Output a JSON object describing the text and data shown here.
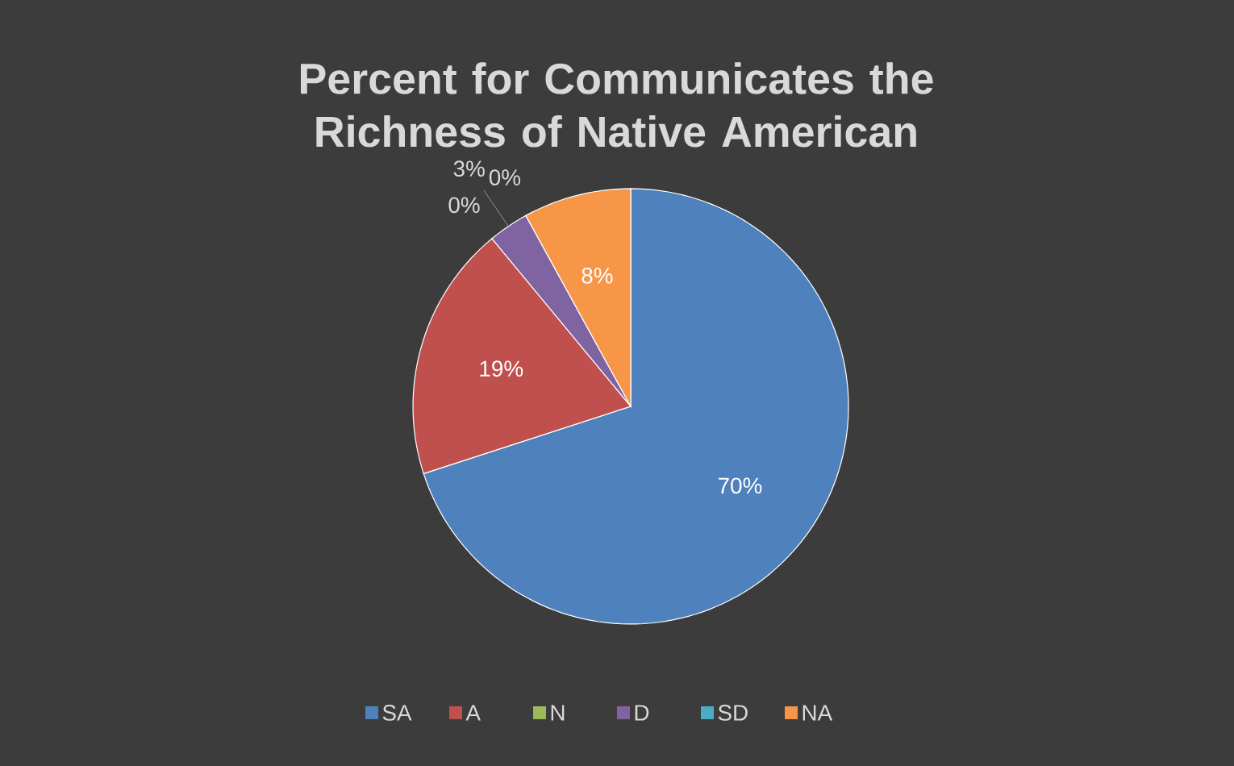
{
  "chart_data": {
    "type": "pie",
    "title": "Percent for Communicates the Richness of Native American",
    "categories": [
      "SA",
      "A",
      "N",
      "D",
      "SD",
      "NA"
    ],
    "values": [
      70,
      19,
      0,
      3,
      0,
      8
    ],
    "colors": [
      "#4f81bd",
      "#c0504d",
      "#9bbb59",
      "#8064a2",
      "#4bacc6",
      "#f79646"
    ],
    "value_labels": [
      "70%",
      "19%",
      "0%",
      "3%",
      "0%",
      "8%"
    ],
    "legend": "bottom"
  }
}
